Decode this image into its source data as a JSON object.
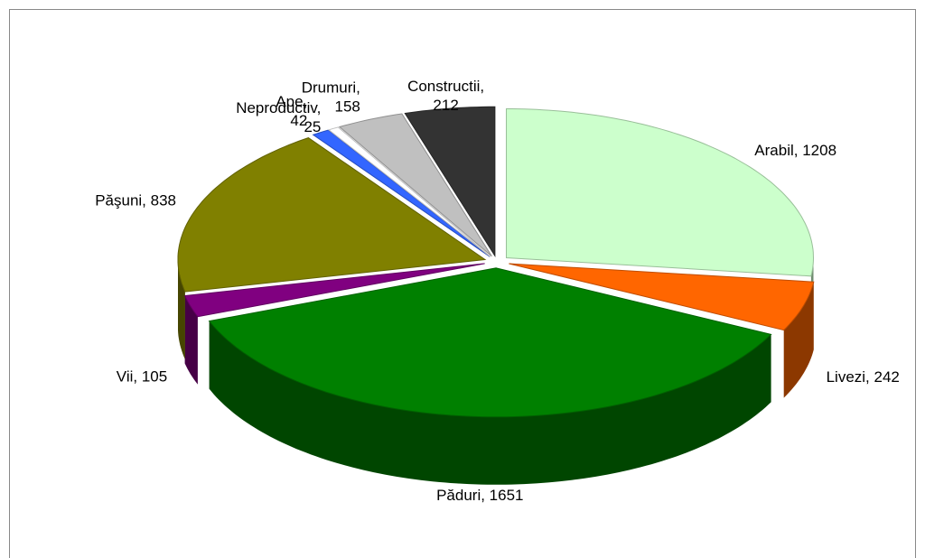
{
  "chart_data": {
    "type": "pie3d",
    "values": [
      1208,
      242,
      1651,
      105,
      838,
      42,
      25,
      158,
      212
    ],
    "value_labels": [
      "Arabil, 1208",
      "Livezi, 242",
      "Păduri, 1651",
      "Vii, 105",
      "Păşuni, 838",
      "Ape, 42",
      "Neproductiv, 25",
      "Drumuri, 158",
      "Constructii, 212"
    ],
    "colors": [
      "#ccffcc",
      "#ff6600",
      "#008000",
      "#800080",
      "#808000",
      "#3366ff",
      "#ffffff",
      "#c0c0c0",
      "#333333"
    ]
  }
}
